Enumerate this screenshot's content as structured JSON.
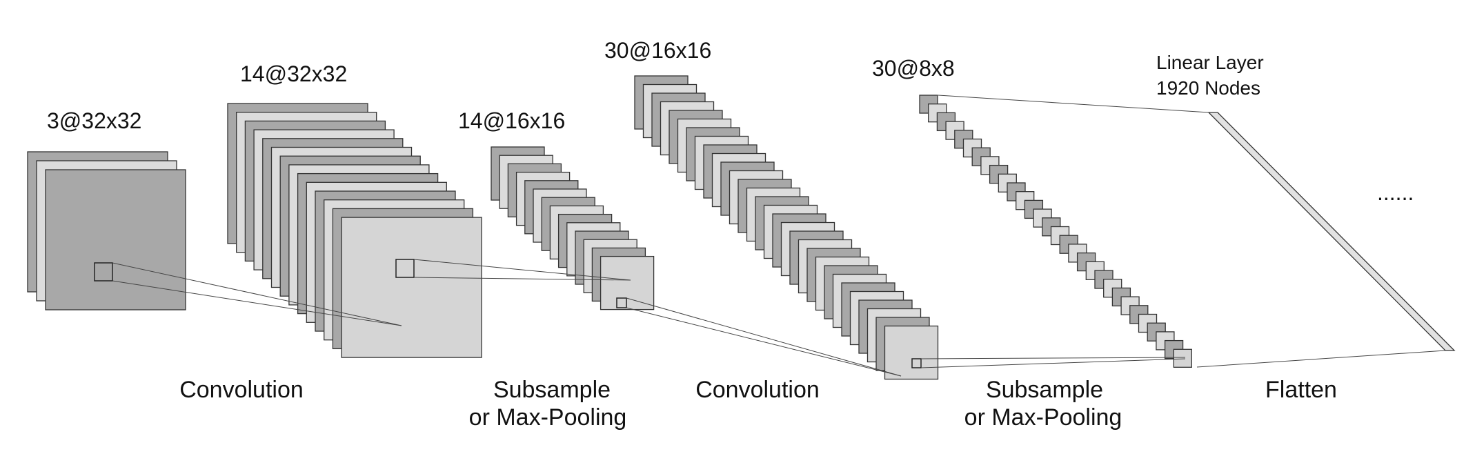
{
  "layers": {
    "input": {
      "label": "3@32x32",
      "maps": 3
    },
    "conv1": {
      "label": "14@32x32",
      "maps": 14
    },
    "pool1": {
      "label": "14@16x16",
      "maps": 14
    },
    "conv2": {
      "label": "30@16x16",
      "maps": 30
    },
    "pool2": {
      "label": "30@8x8",
      "maps": 30
    },
    "linear": {
      "title": "Linear Layer",
      "nodes": "1920 Nodes"
    }
  },
  "operations": {
    "op1": {
      "line1": "Convolution"
    },
    "op2": {
      "line1": "Subsample",
      "line2": "or Max-Pooling"
    },
    "op3": {
      "line1": "Convolution"
    },
    "op4": {
      "line1": "Subsample",
      "line2": "or Max-Pooling"
    },
    "op5": {
      "line1": "Flatten"
    }
  },
  "ellipsis": "......",
  "colors": {
    "dark_map": "#a8a8a8",
    "light_map": "#dcdcdc",
    "front_map": "#d5d5d5",
    "stroke": "#333333"
  }
}
